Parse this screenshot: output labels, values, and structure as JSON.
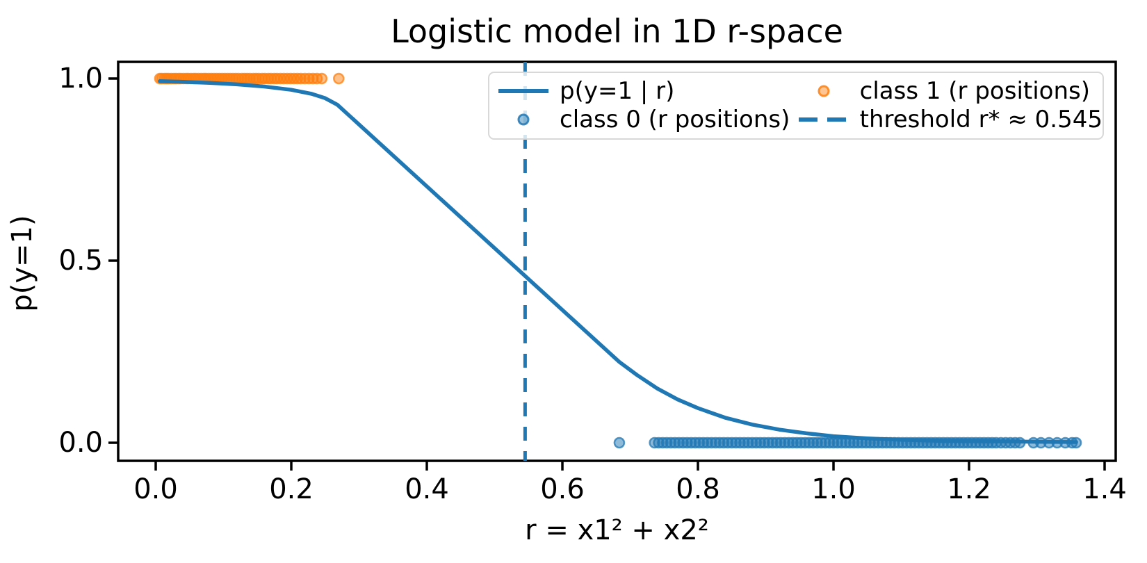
{
  "chart_data": {
    "type": "line+scatter",
    "title": "Logistic model in 1D r-space",
    "xlabel": "r = x1² + x2²",
    "ylabel": "p(y=1)",
    "xlim": [
      -0.0554,
      1.4164
    ],
    "ylim": [
      -0.0496,
      1.0458
    ],
    "grid": false,
    "x_ticks": {
      "values": [
        0.0,
        0.2,
        0.4,
        0.6,
        0.8,
        1.0,
        1.2,
        1.4
      ],
      "labels": [
        "0.0",
        "0.2",
        "0.4",
        "0.6",
        "0.8",
        "1.0",
        "1.2",
        "1.4"
      ]
    },
    "y_ticks": {
      "values": [
        0.0,
        0.5,
        1.0
      ],
      "labels": [
        "0.0",
        "0.5",
        "1.0"
      ]
    },
    "colors": {
      "blue": "#1f77b4",
      "orange": "#ff7f0e"
    },
    "legend_position": "upper center, 2 columns, semi-transparent frame",
    "curve": {
      "name": "p(y=1 | r)",
      "color": "#1f77b4",
      "style": "solid",
      "points": [
        [
          0.006,
          0.993
        ],
        [
          0.04,
          0.991
        ],
        [
          0.08,
          0.988
        ],
        [
          0.12,
          0.984
        ],
        [
          0.16,
          0.978
        ],
        [
          0.2,
          0.969
        ],
        [
          0.23,
          0.958
        ],
        [
          0.25,
          0.946
        ],
        [
          0.268,
          0.928
        ],
        [
          0.684,
          0.222
        ],
        [
          0.71,
          0.186
        ],
        [
          0.74,
          0.149
        ],
        [
          0.77,
          0.119
        ],
        [
          0.8,
          0.095
        ],
        [
          0.84,
          0.069
        ],
        [
          0.88,
          0.05
        ],
        [
          0.92,
          0.036
        ],
        [
          0.96,
          0.026
        ],
        [
          1.0,
          0.018
        ],
        [
          1.05,
          0.012
        ],
        [
          1.1,
          0.008
        ],
        [
          1.16,
          0.005
        ],
        [
          1.22,
          0.004
        ],
        [
          1.28,
          0.003
        ],
        [
          1.358,
          0.002
        ]
      ]
    },
    "scatter_class1": {
      "name": "class 1 (r positions)",
      "color": "#ff7f0e",
      "y": 1.0,
      "r_values": [
        0.006,
        0.009,
        0.013,
        0.016,
        0.019,
        0.023,
        0.027,
        0.03,
        0.034,
        0.037,
        0.041,
        0.045,
        0.048,
        0.052,
        0.056,
        0.059,
        0.063,
        0.067,
        0.071,
        0.074,
        0.078,
        0.082,
        0.086,
        0.09,
        0.094,
        0.098,
        0.102,
        0.106,
        0.11,
        0.114,
        0.118,
        0.122,
        0.127,
        0.131,
        0.135,
        0.139,
        0.144,
        0.148,
        0.152,
        0.157,
        0.161,
        0.166,
        0.17,
        0.175,
        0.179,
        0.184,
        0.189,
        0.194,
        0.199,
        0.204,
        0.209,
        0.214,
        0.22,
        0.226,
        0.232,
        0.238,
        0.245,
        0.27
      ]
    },
    "scatter_class0": {
      "name": "class 0 (r positions)",
      "color": "#1f77b4",
      "y": 0.0,
      "r_values": [
        0.684,
        0.736,
        0.742,
        0.748,
        0.754,
        0.76,
        0.766,
        0.772,
        0.778,
        0.784,
        0.79,
        0.796,
        0.802,
        0.808,
        0.814,
        0.82,
        0.826,
        0.832,
        0.838,
        0.844,
        0.85,
        0.856,
        0.862,
        0.868,
        0.874,
        0.88,
        0.886,
        0.892,
        0.898,
        0.904,
        0.91,
        0.916,
        0.922,
        0.928,
        0.934,
        0.94,
        0.946,
        0.952,
        0.958,
        0.964,
        0.97,
        0.976,
        0.982,
        0.988,
        0.994,
        1.0,
        1.006,
        1.012,
        1.018,
        1.024,
        1.03,
        1.036,
        1.042,
        1.048,
        1.054,
        1.06,
        1.066,
        1.072,
        1.078,
        1.084,
        1.09,
        1.096,
        1.102,
        1.108,
        1.114,
        1.12,
        1.126,
        1.132,
        1.138,
        1.144,
        1.15,
        1.156,
        1.162,
        1.168,
        1.174,
        1.18,
        1.186,
        1.192,
        1.198,
        1.204,
        1.21,
        1.216,
        1.222,
        1.228,
        1.234,
        1.24,
        1.247,
        1.254,
        1.261,
        1.268,
        1.275,
        1.295,
        1.306,
        1.318,
        1.33,
        1.342,
        1.352,
        1.358
      ]
    },
    "threshold": {
      "name": "threshold r* ≈ 0.545",
      "x": 0.545,
      "color": "#1f77b4",
      "style": "dashed"
    },
    "legend": {
      "entries": [
        {
          "label": "p(y=1 | r)",
          "handle": "solid-line"
        },
        {
          "label": "class 0 (r positions)",
          "handle": "blue-marker"
        },
        {
          "label": "class 1 (r positions)",
          "handle": "orange-marker"
        },
        {
          "label": "threshold r* ≈ 0.545",
          "handle": "dashed-line"
        }
      ]
    }
  }
}
